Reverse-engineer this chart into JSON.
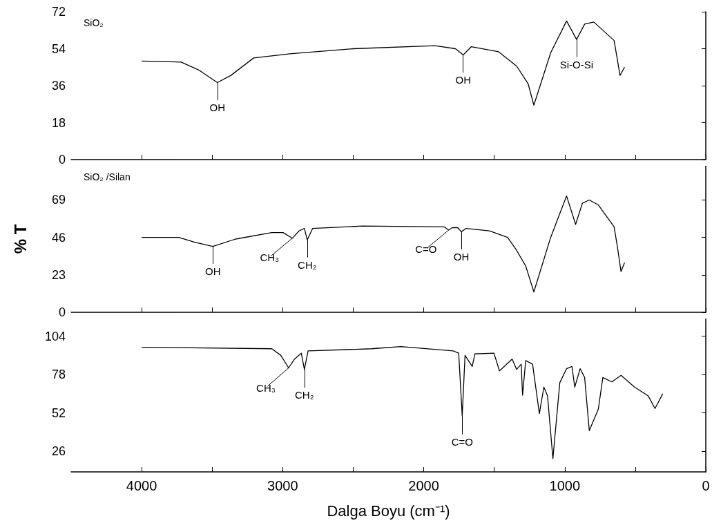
{
  "chart_data": [
    {
      "type": "line",
      "title": "SiO₂",
      "xlim": [
        4500,
        0
      ],
      "xticks": [
        {
          "value": 4000,
          "label": null
        },
        {
          "value": 3500,
          "label": null
        },
        {
          "value": 3000,
          "label": null
        },
        {
          "value": 2500,
          "label": null
        },
        {
          "value": 2000,
          "label": null
        },
        {
          "value": 1500,
          "label": null
        },
        {
          "value": 1000,
          "label": null
        },
        {
          "value": 500,
          "label": null
        },
        {
          "value": 0,
          "label": null
        }
      ],
      "ylim": [
        0,
        72
      ],
      "yticks": [
        0,
        18,
        36,
        54,
        72
      ],
      "tick_labels": "y",
      "grid": false,
      "marker": "none",
      "series": [
        {
          "color": "#000000",
          "x": [
            4000,
            3720,
            3592,
            3463,
            3367,
            3206,
            2949,
            2498,
            1920,
            1775,
            1720,
            1662,
            1469,
            1341,
            1260,
            1219,
            1100,
            987,
            916,
            859,
            794,
            650,
            608,
            576
          ],
          "values": [
            48,
            47.5,
            43.5,
            37.5,
            41,
            49.5,
            51.5,
            54,
            55.5,
            54,
            51,
            55,
            52.5,
            45.5,
            37,
            26.5,
            52,
            67.5,
            58.5,
            66,
            67,
            58,
            41,
            45
          ]
        }
      ],
      "annotations": [
        {
          "text": "OH",
          "x": 3463,
          "y": 37.5
        },
        {
          "text": "OH",
          "x": 1720,
          "y": 51
        },
        {
          "text": "Si-O-Si",
          "x": 916,
          "y": 58.5
        }
      ]
    },
    {
      "type": "line",
      "title": "SiO₂ /Silan",
      "ylabel": "% T",
      "xlim": [
        4500,
        0
      ],
      "xticks": [
        {
          "value": 4000,
          "label": null
        },
        {
          "value": 3500,
          "label": null
        },
        {
          "value": 3000,
          "label": null
        },
        {
          "value": 2500,
          "label": null
        },
        {
          "value": 2000,
          "label": null
        },
        {
          "value": 1500,
          "label": null
        },
        {
          "value": 1000,
          "label": null
        },
        {
          "value": 500,
          "label": null
        },
        {
          "value": 0,
          "label": null
        }
      ],
      "ylim": [
        0,
        90
      ],
      "yticks": [
        0,
        23,
        46,
        69
      ],
      "tick_labels": "y",
      "grid": false,
      "marker": "none",
      "series": [
        {
          "color": "#000000",
          "x": [
            4000,
            3736,
            3624,
            3495,
            3334,
            3077,
            2997,
            2932,
            2884,
            2846,
            2826,
            2788,
            2434,
            1855,
            1823,
            1797,
            1759,
            1733,
            1701,
            1534,
            1405,
            1341,
            1277,
            1219,
            1100,
            987,
            923,
            875,
            826,
            762,
            650,
            627,
            601,
            576
          ],
          "values": [
            46,
            46,
            43,
            40.5,
            45,
            49,
            49,
            45.5,
            50,
            51.5,
            44.5,
            51.5,
            53,
            52.5,
            50.5,
            52,
            52,
            49.5,
            51.5,
            50,
            46,
            38,
            28.5,
            12.5,
            46,
            71.5,
            54,
            67,
            69,
            66,
            52.5,
            40.5,
            25,
            30.5
          ]
        }
      ],
      "annotations": [
        {
          "text": "OH",
          "x": 3495,
          "y": 40.5
        },
        {
          "text": "CH₃",
          "x": 2932,
          "y": 45.5
        },
        {
          "text": "CH₂",
          "x": 2826,
          "y": 44.5
        },
        {
          "text": "C=O",
          "x": 1823,
          "y": 50.5
        },
        {
          "text": "OH",
          "x": 1733,
          "y": 49.5
        }
      ]
    },
    {
      "type": "line",
      "xlabel": "Dalga Boyu (cm⁻¹)",
      "xlim": [
        4500,
        0
      ],
      "xticks": [
        4000,
        {
          "value": 3500,
          "label": null
        },
        3000,
        {
          "value": 2500,
          "label": null
        },
        2000,
        {
          "value": 1500,
          "label": null
        },
        1000,
        {
          "value": 500,
          "label": null
        },
        0
      ],
      "ylim": [
        12,
        116
      ],
      "yticks": [
        26,
        52,
        78,
        104
      ],
      "grid": false,
      "marker": "none",
      "series": [
        {
          "color": "#000000",
          "x": [
            4000,
            3077,
            3013,
            2958,
            2916,
            2868,
            2846,
            2820,
            2370,
            2161,
            1791,
            1752,
            1727,
            1707,
            1656,
            1637,
            1502,
            1463,
            1373,
            1341,
            1309,
            1299,
            1277,
            1228,
            1180,
            1148,
            1122,
            1084,
            1035,
            987,
            949,
            929,
            891,
            859,
            826,
            762,
            730,
            666,
            601,
            505,
            408,
            360,
            305
          ],
          "values": [
            96.5,
            95.5,
            91,
            82.5,
            88.5,
            92.5,
            81.5,
            94,
            95.5,
            97,
            94,
            92.5,
            50,
            91,
            83.5,
            92,
            92.5,
            80.5,
            88.5,
            81.5,
            85,
            64,
            87.5,
            85,
            51.5,
            69.5,
            63.5,
            21,
            72.5,
            82,
            83.5,
            69.5,
            82,
            76,
            40,
            54.5,
            76,
            73,
            77.5,
            69.5,
            63.5,
            55,
            65
          ]
        }
      ],
      "annotations": [
        {
          "text": "CH₃",
          "x": 2958,
          "y": 82.5
        },
        {
          "text": "CH₂",
          "x": 2846,
          "y": 81.5
        },
        {
          "text": "C=O",
          "x": 1727,
          "y": 50
        }
      ]
    }
  ]
}
